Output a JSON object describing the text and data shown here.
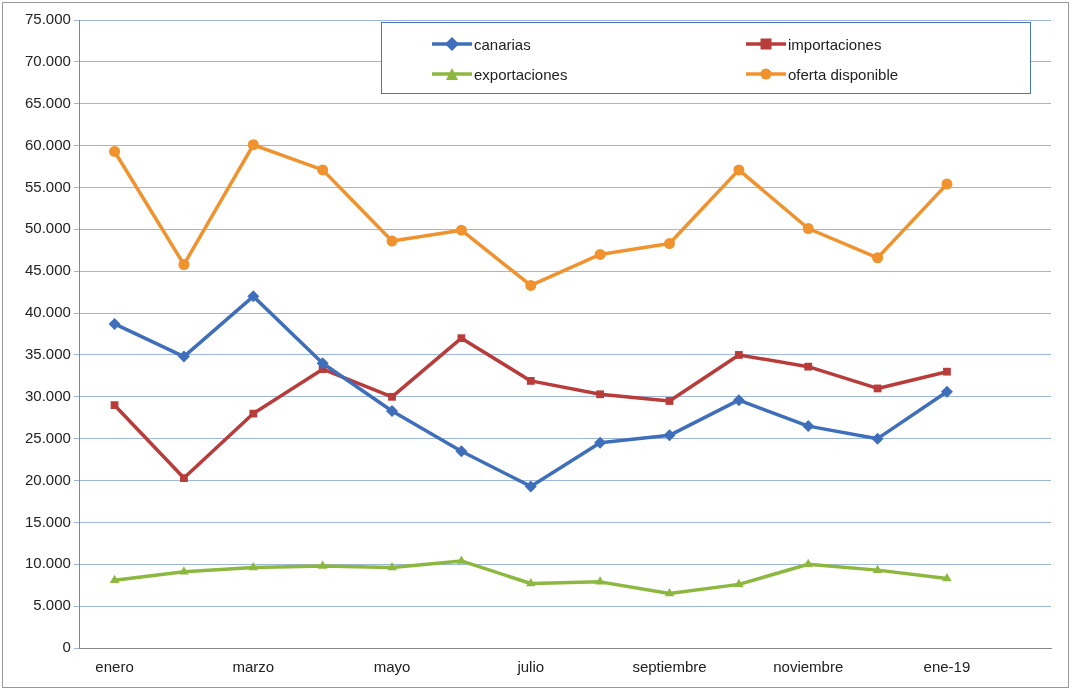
{
  "chart_data": {
    "type": "line",
    "categories": [
      "enero",
      null,
      "marzo",
      null,
      "mayo",
      null,
      "julio",
      null,
      "septiembre",
      null,
      "noviembre",
      null,
      "ene-19",
      null
    ],
    "ylim": [
      0,
      75000
    ],
    "yticks": [
      0,
      {
        "value": 5000,
        "label": "5.000"
      },
      {
        "value": 10000,
        "label": "10.000"
      },
      {
        "value": 15000,
        "label": "15.000"
      },
      {
        "value": 20000,
        "label": "20.000"
      },
      {
        "value": 25000,
        "label": "25.000"
      },
      {
        "value": 30000,
        "label": "30.000"
      },
      {
        "value": 35000,
        "label": "35.000"
      },
      {
        "value": 40000,
        "label": "40.000"
      },
      {
        "value": 45000,
        "label": "45.000"
      },
      {
        "value": 50000,
        "label": "50.000"
      },
      {
        "value": 55000,
        "label": "55.000"
      },
      {
        "value": 60000,
        "label": "60.000"
      },
      {
        "value": 65000,
        "label": "65.000"
      },
      {
        "value": 70000,
        "label": "70.000"
      },
      {
        "value": 75000,
        "label": "75.000"
      }
    ],
    "grid": "y",
    "legend": "top right",
    "line_style": "solid",
    "series": [
      {
        "name": "canarias",
        "color": "#3f6fba",
        "marker": "diamond",
        "values": [
          38700,
          34800,
          42000,
          34000,
          28300,
          23500,
          19300,
          24500,
          25400,
          29600,
          26500,
          25000,
          30600,
          null
        ]
      },
      {
        "name": "importaciones",
        "color": "#b83c3a",
        "marker": "square",
        "values": [
          29000,
          20300,
          28000,
          33300,
          30000,
          37000,
          31900,
          30300,
          29500,
          35000,
          33600,
          31000,
          33000,
          null
        ]
      },
      {
        "name": "exportaciones",
        "color": "#8db840",
        "marker": "triangle",
        "values": [
          8100,
          9100,
          9600,
          9800,
          9600,
          10400,
          7700,
          7900,
          6500,
          7600,
          10000,
          9300,
          8300,
          null
        ]
      },
      {
        "name": "oferta disponible",
        "color": "#f0922e",
        "marker": "circle",
        "values": [
          59300,
          45800,
          60100,
          57100,
          48600,
          49900,
          43300,
          47000,
          48300,
          57100,
          50100,
          46600,
          55400,
          null
        ]
      }
    ]
  }
}
